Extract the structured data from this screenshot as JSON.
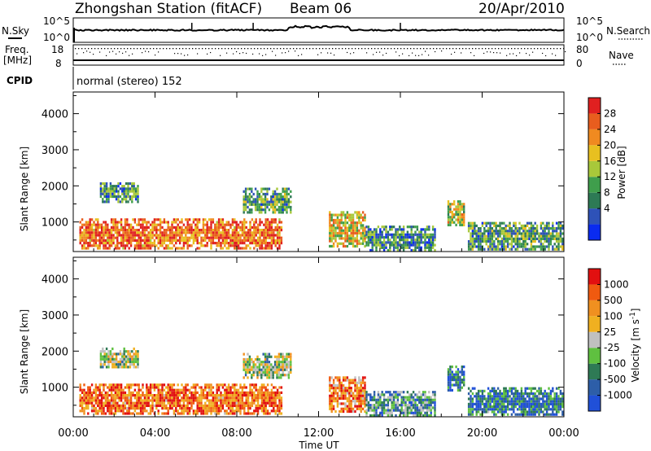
{
  "header": {
    "station": "Zhongshan Station (fitACF)",
    "beam": "Beam 06",
    "date": "20/Apr/2010"
  },
  "status_panels": {
    "nsky_label": "N.Sky",
    "nsearch_label": "N.Search",
    "noise_ticks": {
      "top": "10^5",
      "bottom": "10^0"
    },
    "freq_label_line1": "Freq.",
    "freq_label_line2": "[MHz]",
    "freq_ticks": [
      "18",
      "8"
    ],
    "nave_ticks": [
      "80",
      "0"
    ],
    "nave_label": "Nave",
    "cpid_label": "CPID",
    "cpid_text": "normal (stereo) 152"
  },
  "colors": {
    "power_scale": [
      "#0a2bf0",
      "#2e52b8",
      "#2d7a55",
      "#3f9e4c",
      "#a8c83a",
      "#e8c020",
      "#f08a20",
      "#e85d1e",
      "#e02020"
    ],
    "velocity_scale": [
      "#2050d8",
      "#2d5ea8",
      "#2e7a55",
      "#5fc040",
      "#c0c0c0",
      "#f0b020",
      "#f09020",
      "#f05a10",
      "#e21010"
    ]
  },
  "chart_data": [
    {
      "type": "heatmap",
      "title": "",
      "xlabel": "Time UT",
      "ylabel": "Slant Range [km]",
      "colorbar_label": "Power [dB]",
      "colorbar_ticks": [
        "28",
        "24",
        "20",
        "16",
        "12",
        "8",
        "4"
      ],
      "x_tick_labels": [
        "00:00",
        "04:00",
        "08:00",
        "12:00",
        "16:00",
        "20:00",
        "00:00"
      ],
      "y_tick_labels": [
        "1000",
        "2000",
        "3000",
        "4000"
      ],
      "xlim_hours": [
        0,
        24
      ],
      "ylim_km": [
        180,
        4600
      ],
      "echo_regions": [
        {
          "t0": 0.3,
          "t1": 10.2,
          "r0": 250,
          "r1": 1100,
          "level": 0.8
        },
        {
          "t0": 1.3,
          "t1": 3.2,
          "r0": 1550,
          "r1": 2100,
          "level": 0.3
        },
        {
          "t0": 8.3,
          "t1": 10.6,
          "r0": 1250,
          "r1": 1950,
          "level": 0.35
        },
        {
          "t0": 12.5,
          "t1": 14.3,
          "r0": 300,
          "r1": 1300,
          "level": 0.6
        },
        {
          "t0": 14.3,
          "t1": 17.7,
          "r0": 200,
          "r1": 900,
          "level": 0.3
        },
        {
          "t0": 18.3,
          "t1": 19.1,
          "r0": 900,
          "r1": 1600,
          "level": 0.55
        },
        {
          "t0": 19.3,
          "t1": 23.9,
          "r0": 250,
          "r1": 1000,
          "level": 0.35
        }
      ]
    },
    {
      "type": "heatmap",
      "title": "",
      "xlabel": "Time UT",
      "ylabel": "Slant Range [km]",
      "colorbar_label": "Velocity [m s^-1]",
      "colorbar_ticks": [
        "1000",
        "500",
        "100",
        "25",
        "-25",
        "-100",
        "-500",
        "-1000"
      ],
      "x_tick_labels": [
        "00:00",
        "04:00",
        "08:00",
        "12:00",
        "16:00",
        "20:00",
        "00:00"
      ],
      "y_tick_labels": [
        "1000",
        "2000",
        "3000",
        "4000"
      ],
      "xlim_hours": [
        0,
        24
      ],
      "ylim_km": [
        180,
        4600
      ],
      "echo_regions": [
        {
          "t0": 0.3,
          "t1": 10.2,
          "r0": 250,
          "r1": 1100,
          "level": 0.8
        },
        {
          "t0": 1.3,
          "t1": 3.2,
          "r0": 1550,
          "r1": 2100,
          "level": 0.45
        },
        {
          "t0": 8.3,
          "t1": 10.6,
          "r0": 1250,
          "r1": 1950,
          "level": 0.45
        },
        {
          "t0": 12.5,
          "t1": 14.3,
          "r0": 300,
          "r1": 1300,
          "level": 0.75
        },
        {
          "t0": 14.3,
          "t1": 17.7,
          "r0": 200,
          "r1": 900,
          "level": 0.3
        },
        {
          "t0": 18.3,
          "t1": 19.1,
          "r0": 900,
          "r1": 1600,
          "level": 0.2
        },
        {
          "t0": 19.3,
          "t1": 23.9,
          "r0": 250,
          "r1": 1000,
          "level": 0.2
        }
      ]
    }
  ]
}
